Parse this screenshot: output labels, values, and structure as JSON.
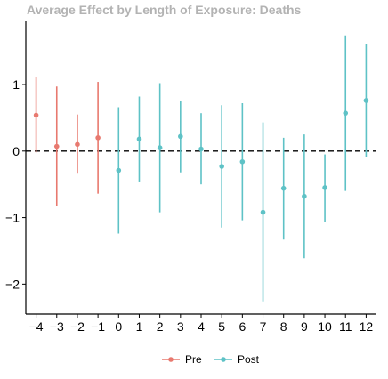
{
  "chart_data": {
    "type": "scatter",
    "title": "Average Effect by Length of Exposure: Deaths",
    "xlabel": "",
    "ylabel": "",
    "x_ticks": [
      "−4",
      "−3",
      "−2",
      "−1",
      "0",
      "1",
      "2",
      "3",
      "4",
      "5",
      "6",
      "7",
      "8",
      "9",
      "10",
      "11",
      "12"
    ],
    "y_ticks": [
      "−2",
      "−1",
      "0",
      "1"
    ],
    "xlim": [
      -4.5,
      12.5
    ],
    "ylim": [
      -2.45,
      1.95
    ],
    "reference_line": {
      "y": 0,
      "style": "dashed"
    },
    "legend": {
      "position": "bottom"
    },
    "grid": false,
    "series": [
      {
        "name": "Pre",
        "color": "#e8796f",
        "points": [
          {
            "x": -4,
            "y": 0.54,
            "lo": -0.02,
            "hi": 1.11
          },
          {
            "x": -3,
            "y": 0.07,
            "lo": -0.83,
            "hi": 0.97
          },
          {
            "x": -2,
            "y": 0.1,
            "lo": -0.34,
            "hi": 0.55
          },
          {
            "x": -1,
            "y": 0.2,
            "lo": -0.64,
            "hi": 1.04
          }
        ]
      },
      {
        "name": "Post",
        "color": "#5ec2c6",
        "points": [
          {
            "x": 0,
            "y": -0.29,
            "lo": -1.24,
            "hi": 0.66
          },
          {
            "x": 1,
            "y": 0.18,
            "lo": -0.47,
            "hi": 0.82
          },
          {
            "x": 2,
            "y": 0.05,
            "lo": -0.92,
            "hi": 1.02
          },
          {
            "x": 3,
            "y": 0.22,
            "lo": -0.32,
            "hi": 0.76
          },
          {
            "x": 4,
            "y": 0.03,
            "lo": -0.5,
            "hi": 0.57
          },
          {
            "x": 5,
            "y": -0.23,
            "lo": -1.15,
            "hi": 0.69
          },
          {
            "x": 6,
            "y": -0.16,
            "lo": -1.04,
            "hi": 0.72
          },
          {
            "x": 7,
            "y": -0.92,
            "lo": -2.26,
            "hi": 0.43
          },
          {
            "x": 8,
            "y": -0.56,
            "lo": -1.33,
            "hi": 0.2
          },
          {
            "x": 9,
            "y": -0.68,
            "lo": -1.61,
            "hi": 0.25
          },
          {
            "x": 10,
            "y": -0.55,
            "lo": -1.06,
            "hi": -0.05
          },
          {
            "x": 11,
            "y": 0.57,
            "lo": -0.6,
            "hi": 1.74
          },
          {
            "x": 12,
            "y": 0.76,
            "lo": -0.09,
            "hi": 1.61
          }
        ]
      }
    ]
  }
}
